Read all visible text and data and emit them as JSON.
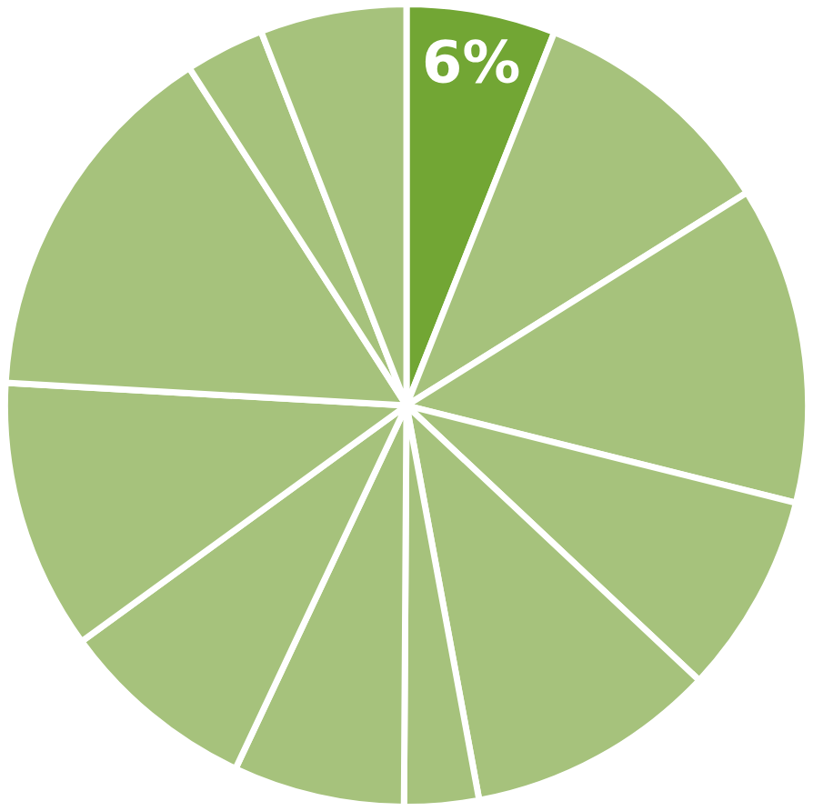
{
  "chart_data": {
    "type": "pie",
    "categories": [
      null,
      null,
      null,
      null,
      null,
      null,
      null,
      null,
      null,
      null,
      null,
      null
    ],
    "values": [
      6,
      10.1,
      12.8,
      8.1,
      10.1,
      3,
      6.9,
      8,
      10.9,
      15,
      3.2,
      5.9
    ],
    "colors": [
      "#72a634",
      "#a6c27c",
      "#a6c27c",
      "#a6c27c",
      "#a6c27c",
      "#a6c27c",
      "#a6c27c",
      "#a6c27c",
      "#a6c27c",
      "#a6c27c",
      "#a6c27c",
      "#a6c27c"
    ],
    "value_labels": [
      "6%",
      null,
      null,
      null,
      null,
      null,
      null,
      null,
      null,
      null,
      null,
      null
    ]
  }
}
